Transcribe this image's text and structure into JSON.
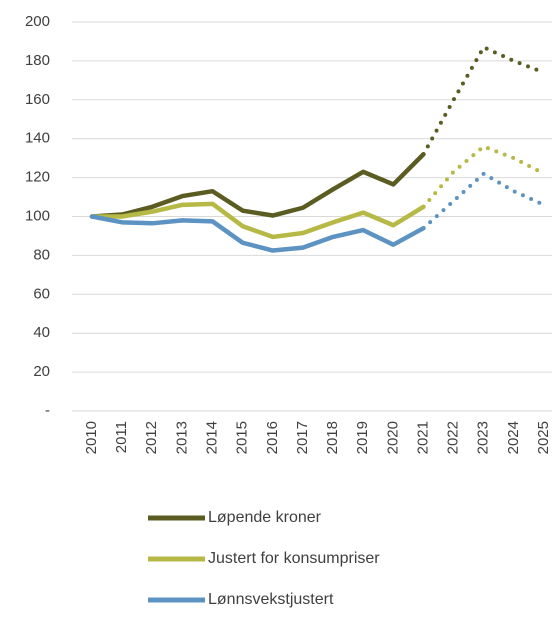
{
  "chart_data": {
    "type": "line",
    "categories": [
      "2010",
      "2011",
      "2012",
      "2013",
      "2014",
      "2015",
      "2016",
      "2017",
      "2018",
      "2019",
      "2020",
      "2021",
      "2022",
      "2023",
      "2024",
      "2025"
    ],
    "projection_start": "2021",
    "series": [
      {
        "name": "Løpende kroner",
        "color": "#5b5c22",
        "values": [
          100,
          101,
          105,
          110.5,
          113,
          103,
          100.5,
          104.5,
          114,
          123,
          116.5,
          132,
          160,
          187,
          180,
          174
        ]
      },
      {
        "name": "Justert for konsumpriser",
        "color": "#b6b945",
        "values": [
          100,
          100,
          102.5,
          106,
          106.5,
          95,
          89.5,
          91.5,
          97,
          102,
          95.5,
          105,
          123,
          136,
          130,
          122
        ]
      },
      {
        "name": "Lønnsvekstjustert",
        "color": "#5c93c2",
        "values": [
          100,
          97,
          96.5,
          98,
          97.5,
          86.5,
          82.5,
          84,
          89.5,
          93,
          85.5,
          94,
          108,
          122,
          113,
          106
        ]
      }
    ],
    "ylim": [
      0,
      200
    ],
    "yticks": [
      {
        "value": 0,
        "label": "-"
      },
      20,
      40,
      60,
      80,
      100,
      120,
      140,
      160,
      180,
      200
    ],
    "grid": true
  }
}
